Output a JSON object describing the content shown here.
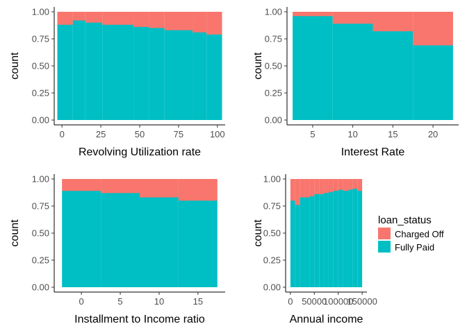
{
  "colors": {
    "charged_off": "#F8766D",
    "fully_paid": "#00BFC4",
    "axis": "#000000",
    "tick_text": "#4d4d4d"
  },
  "legend": {
    "title": "loan_status",
    "items": [
      {
        "label": "Charged Off",
        "color": "#F8766D"
      },
      {
        "label": "Fully Paid",
        "color": "#00BFC4"
      }
    ]
  },
  "chart_data": [
    {
      "type": "bar",
      "stacked": "fill",
      "xlabel": "Revolving Utilization rate",
      "ylabel": "count",
      "xlim": [
        -5,
        105
      ],
      "ylim": [
        0,
        1
      ],
      "x_ticks": [
        0,
        25,
        50,
        75,
        100
      ],
      "x_tick_labels": [
        "0",
        "25",
        "50",
        "75",
        "100"
      ],
      "y_ticks": [
        0,
        0.25,
        0.5,
        0.75,
        1.0
      ],
      "y_tick_labels": [
        "0.00",
        "0.25",
        "0.50",
        "0.75",
        "1.00"
      ],
      "bins": [
        {
          "from": -3,
          "to": 7,
          "fully_paid": 0.88
        },
        {
          "from": 7,
          "to": 15,
          "fully_paid": 0.92
        },
        {
          "from": 15,
          "to": 26,
          "fully_paid": 0.9
        },
        {
          "from": 26,
          "to": 46,
          "fully_paid": 0.88
        },
        {
          "from": 46,
          "to": 56,
          "fully_paid": 0.86
        },
        {
          "from": 56,
          "to": 66,
          "fully_paid": 0.85
        },
        {
          "from": 66,
          "to": 84,
          "fully_paid": 0.83
        },
        {
          "from": 84,
          "to": 93,
          "fully_paid": 0.81
        },
        {
          "from": 93,
          "to": 103,
          "fully_paid": 0.79
        }
      ],
      "series": [
        {
          "name": "Charged Off"
        },
        {
          "name": "Fully Paid"
        }
      ]
    },
    {
      "type": "bar",
      "stacked": "fill",
      "xlabel": "Interest Rate",
      "ylabel": "count",
      "xlim": [
        1.8,
        23.2
      ],
      "ylim": [
        0,
        1
      ],
      "x_ticks": [
        5,
        10,
        15,
        20
      ],
      "x_tick_labels": [
        "5",
        "10",
        "15",
        "20"
      ],
      "y_ticks": [
        0,
        0.25,
        0.5,
        0.75,
        1.0
      ],
      "y_tick_labels": [
        "0.00",
        "0.25",
        "0.50",
        "0.75",
        "1.00"
      ],
      "bins": [
        {
          "from": 2.5,
          "to": 7.5,
          "fully_paid": 0.96
        },
        {
          "from": 7.5,
          "to": 12.5,
          "fully_paid": 0.89
        },
        {
          "from": 12.5,
          "to": 17.5,
          "fully_paid": 0.82
        },
        {
          "from": 17.5,
          "to": 22.5,
          "fully_paid": 0.69
        }
      ],
      "series": [
        {
          "name": "Charged Off"
        },
        {
          "name": "Fully Paid"
        }
      ]
    },
    {
      "type": "bar",
      "stacked": "fill",
      "xlabel": "Installment to Income ratio",
      "ylabel": "count",
      "xlim": [
        -3.5,
        18.5
      ],
      "ylim": [
        0,
        1
      ],
      "x_ticks": [
        0,
        5,
        10,
        15
      ],
      "x_tick_labels": [
        "0",
        "5",
        "10",
        "15"
      ],
      "y_ticks": [
        0,
        0.25,
        0.5,
        0.75,
        1.0
      ],
      "y_tick_labels": [
        "0.00",
        "0.25",
        "0.50",
        "0.75",
        "1.00"
      ],
      "bins": [
        {
          "from": -2.5,
          "to": 2.5,
          "fully_paid": 0.89
        },
        {
          "from": 2.5,
          "to": 7.5,
          "fully_paid": 0.87
        },
        {
          "from": 7.5,
          "to": 12.5,
          "fully_paid": 0.83
        },
        {
          "from": 12.5,
          "to": 17.5,
          "fully_paid": 0.8
        }
      ],
      "series": [
        {
          "name": "Charged Off"
        },
        {
          "name": "Fully Paid"
        }
      ]
    },
    {
      "type": "bar",
      "stacked": "fill",
      "xlabel": "Annual income",
      "ylabel": "count",
      "xlim": [
        -10000,
        160000
      ],
      "ylim": [
        0,
        1
      ],
      "x_ticks": [
        0,
        50000,
        100000,
        150000
      ],
      "x_tick_labels": [
        "0",
        "50000",
        "100000",
        "150000"
      ],
      "y_ticks": [
        0,
        0.25,
        0.5,
        0.75,
        1.0
      ],
      "y_tick_labels": [
        "0.00",
        "0.25",
        "0.50",
        "0.75",
        "1.00"
      ],
      "bins": [
        {
          "from": 0,
          "to": 10000,
          "fully_paid": 0.8
        },
        {
          "from": 10000,
          "to": 20000,
          "fully_paid": 0.76
        },
        {
          "from": 20000,
          "to": 30000,
          "fully_paid": 0.83
        },
        {
          "from": 30000,
          "to": 40000,
          "fully_paid": 0.83
        },
        {
          "from": 40000,
          "to": 50000,
          "fully_paid": 0.84
        },
        {
          "from": 50000,
          "to": 60000,
          "fully_paid": 0.86
        },
        {
          "from": 60000,
          "to": 70000,
          "fully_paid": 0.86
        },
        {
          "from": 70000,
          "to": 80000,
          "fully_paid": 0.87
        },
        {
          "from": 80000,
          "to": 90000,
          "fully_paid": 0.88
        },
        {
          "from": 90000,
          "to": 100000,
          "fully_paid": 0.89
        },
        {
          "from": 100000,
          "to": 110000,
          "fully_paid": 0.9
        },
        {
          "from": 110000,
          "to": 120000,
          "fully_paid": 0.89
        },
        {
          "from": 120000,
          "to": 130000,
          "fully_paid": 0.9
        },
        {
          "from": 130000,
          "to": 140000,
          "fully_paid": 0.91
        },
        {
          "from": 140000,
          "to": 150000,
          "fully_paid": 0.89
        }
      ],
      "series": [
        {
          "name": "Charged Off"
        },
        {
          "name": "Fully Paid"
        }
      ]
    }
  ]
}
